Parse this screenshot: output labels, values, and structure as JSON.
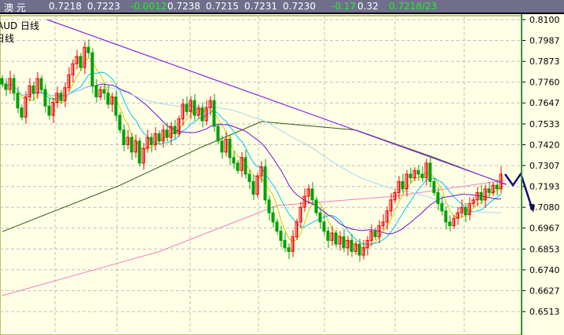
{
  "header": {
    "symbol": "澳  元",
    "values": [
      "0.7218",
      "0.7223"
    ],
    "change": "-0.0012",
    "ohlc": [
      "0.7238",
      "0.7215",
      "0.7231",
      "0.7230"
    ],
    "change_pct": "-0.17",
    "amplitude": "0.32",
    "bid_ask": "0.7218/23"
  },
  "chart_title": "AUD  日线",
  "chart_subtitle": "日线",
  "colors": {
    "up": "#ee0000",
    "down": "#00a000",
    "background": "#ffffe6",
    "grid": "#c0c0c0",
    "trendline": "#8a2be2",
    "projection": "#10107a"
  },
  "chart_data": {
    "type": "candlestick",
    "ylim": [
      0.645,
      0.812
    ],
    "yticks": [
      "0.8100",
      "0.7987",
      "0.7873",
      "0.7760",
      "0.7647",
      "0.7533",
      "0.7420",
      "0.7307",
      "0.7193",
      "0.7080",
      "0.6967",
      "0.6853",
      "0.6740",
      "0.6627",
      "0.6513"
    ],
    "grid": true,
    "close": [
      0.775,
      0.772,
      0.778,
      0.77,
      0.762,
      0.757,
      0.768,
      0.774,
      0.77,
      0.778,
      0.772,
      0.763,
      0.758,
      0.765,
      0.77,
      0.766,
      0.773,
      0.78,
      0.786,
      0.79,
      0.784,
      0.795,
      0.792,
      0.774,
      0.768,
      0.772,
      0.77,
      0.764,
      0.768,
      0.758,
      0.75,
      0.742,
      0.746,
      0.738,
      0.744,
      0.732,
      0.74,
      0.746,
      0.742,
      0.748,
      0.744,
      0.75,
      0.746,
      0.752,
      0.748,
      0.756,
      0.764,
      0.76,
      0.766,
      0.758,
      0.762,
      0.755,
      0.762,
      0.766,
      0.752,
      0.744,
      0.738,
      0.745,
      0.735,
      0.732,
      0.728,
      0.735,
      0.726,
      0.722,
      0.715,
      0.725,
      0.73,
      0.712,
      0.705,
      0.7,
      0.695,
      0.69,
      0.686,
      0.684,
      0.692,
      0.7,
      0.708,
      0.714,
      0.718,
      0.712,
      0.705,
      0.7,
      0.695,
      0.69,
      0.694,
      0.688,
      0.692,
      0.686,
      0.69,
      0.684,
      0.688,
      0.682,
      0.686,
      0.69,
      0.695,
      0.692,
      0.698,
      0.7,
      0.706,
      0.712,
      0.716,
      0.722,
      0.718,
      0.726,
      0.724,
      0.728,
      0.726,
      0.724,
      0.732,
      0.722,
      0.716,
      0.71,
      0.706,
      0.7,
      0.698,
      0.702,
      0.705,
      0.708,
      0.704,
      0.71,
      0.712,
      0.716,
      0.712,
      0.718,
      0.716,
      0.72,
      0.718,
      0.726
    ],
    "moving_averages": [
      {
        "period": 5,
        "color": "#cccc00"
      },
      {
        "period": 10,
        "color": "#00c8e8"
      },
      {
        "period": 20,
        "color": "#7010d0"
      },
      {
        "period": 60,
        "color": "#a8d8e8"
      }
    ],
    "long_ma_points": [
      {
        "color": "#305a10",
        "points": [
          [
            0,
            0.6948
          ],
          [
            30,
            0.72
          ],
          [
            50,
            0.74
          ],
          [
            66,
            0.7546
          ],
          [
            90,
            0.75
          ],
          [
            110,
            0.735
          ],
          [
            128,
            0.7205
          ]
        ]
      },
      {
        "color": "#f080c0",
        "points": [
          [
            0,
            0.66
          ],
          [
            40,
            0.684
          ],
          [
            70,
            0.709
          ],
          [
            100,
            0.714
          ],
          [
            128,
            0.7227
          ]
        ]
      }
    ],
    "trendline": [
      [
        11.4,
        0.81
      ],
      [
        128.4,
        0.7204
      ]
    ],
    "projection": [
      [
        128,
        0.726
      ],
      [
        130,
        0.72
      ],
      [
        132,
        0.7262
      ],
      [
        135,
        0.7065
      ]
    ]
  }
}
